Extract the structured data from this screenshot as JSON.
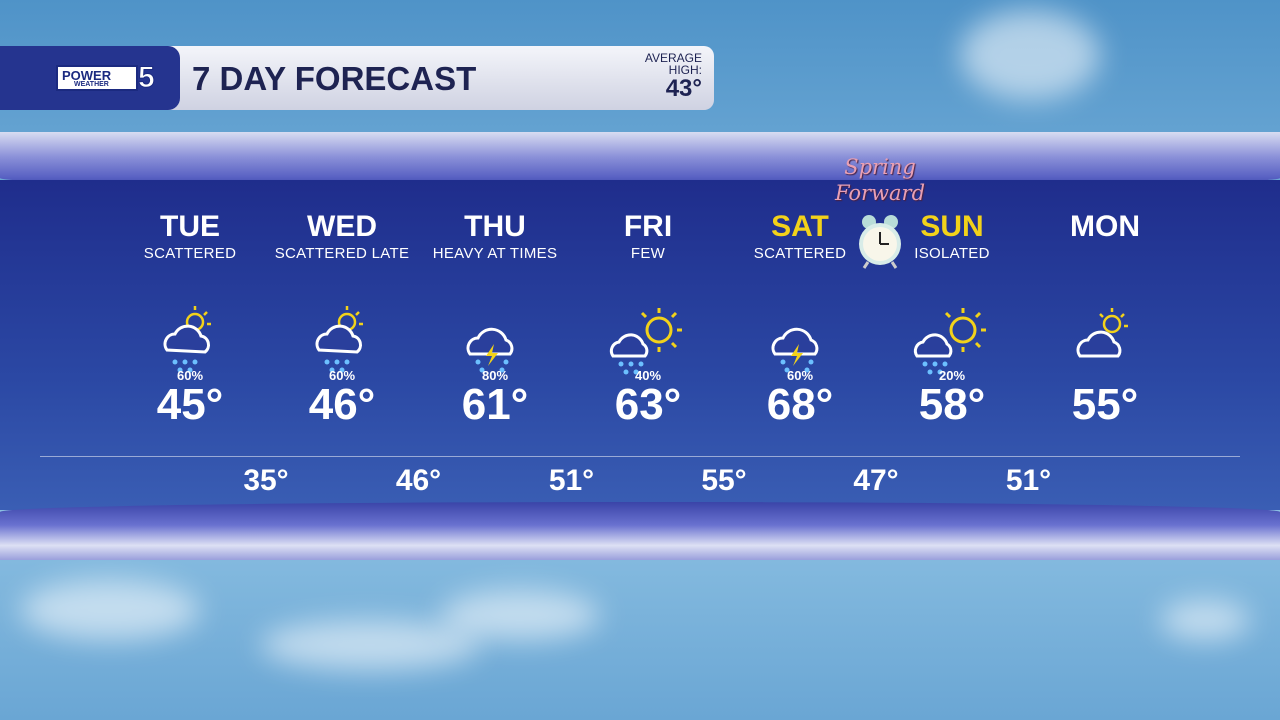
{
  "header": {
    "logo_text": "POWER OF 5 WEATHER",
    "logo_top": "POWER",
    "logo_of": "OF",
    "logo_bottom": "WEATHER",
    "logo_num": "5",
    "title": "7 DAY FORECAST",
    "avg_label1": "AVERAGE",
    "avg_label2": "HIGH:",
    "avg_value": "43°"
  },
  "annotation": {
    "line1": "Spring",
    "line2": "Forward",
    "icon": "alarm-clock-icon"
  },
  "days": [
    {
      "name": "TUE",
      "desc": "SCATTERED",
      "icon": "partly-cloudy-rain-icon",
      "pop": "60%",
      "high": "45°",
      "weekend": false
    },
    {
      "name": "WED",
      "desc": "SCATTERED LATE",
      "icon": "partly-cloudy-rain-icon",
      "pop": "60%",
      "high": "46°",
      "weekend": false
    },
    {
      "name": "THU",
      "desc": "HEAVY AT TIMES",
      "icon": "thunderstorm-icon",
      "pop": "80%",
      "high": "61°",
      "weekend": false
    },
    {
      "name": "FRI",
      "desc": "FEW",
      "icon": "sun-cloud-rain-icon",
      "pop": "40%",
      "high": "63°",
      "weekend": false
    },
    {
      "name": "SAT",
      "desc": "SCATTERED",
      "icon": "thunderstorm-icon",
      "pop": "60%",
      "high": "68°",
      "weekend": true
    },
    {
      "name": "SUN",
      "desc": "ISOLATED",
      "icon": "sun-cloud-rain-icon",
      "pop": "20%",
      "high": "58°",
      "weekend": true
    },
    {
      "name": "MON",
      "desc": "",
      "icon": "partly-cloudy-icon",
      "pop": "",
      "high": "55°",
      "weekend": false
    }
  ],
  "lows": [
    "35°",
    "46°",
    "51°",
    "55°",
    "47°",
    "51°"
  ],
  "colors": {
    "weekend": "#f2d21a",
    "panel": "#25348f"
  }
}
